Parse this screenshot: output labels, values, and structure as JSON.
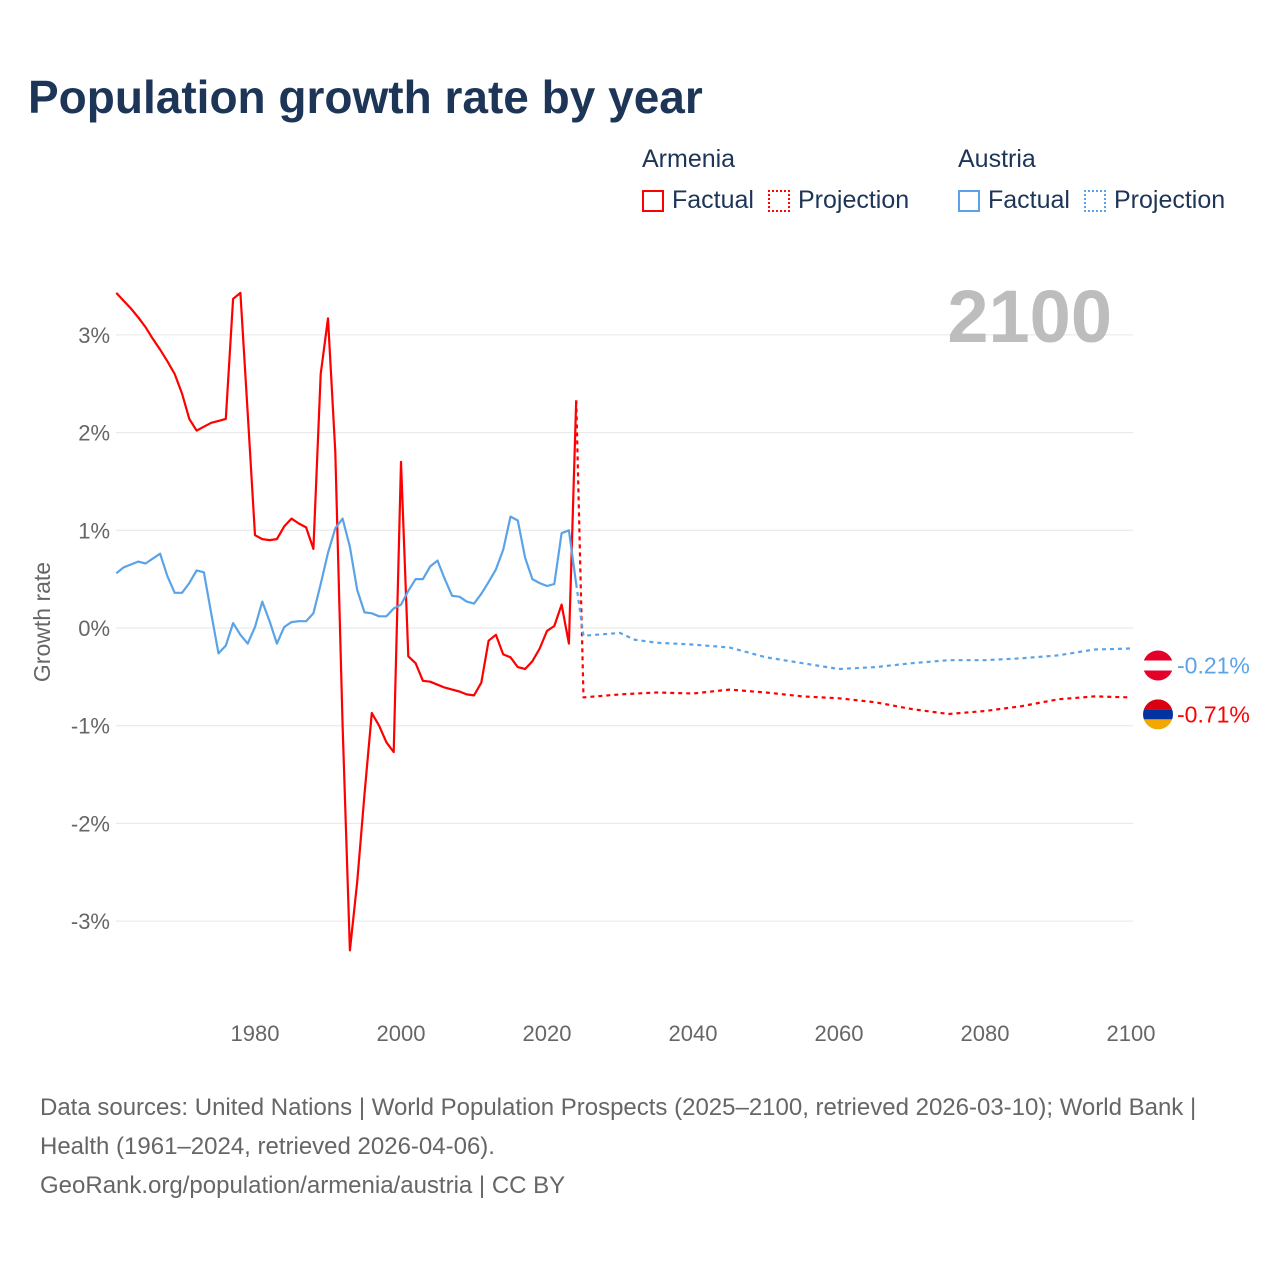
{
  "title": "Population growth rate by year",
  "legend": {
    "groups": [
      {
        "name": "Armenia",
        "factual": "Factual",
        "projection": "Projection",
        "color": "#ff0000"
      },
      {
        "name": "Austria",
        "factual": "Factual",
        "projection": "Projection",
        "color": "#5ba3e8"
      }
    ]
  },
  "year_overlay": "2100",
  "footer": {
    "sources": "Data sources: United Nations | World Population Prospects (2025–2100, retrieved 2026-03-10); World Bank | Health (1961–2024, retrieved 2026-04-06).",
    "credit": "GeoRank.org/population/armenia/austria | CC BY"
  },
  "chart_data": {
    "type": "line",
    "title": "Population growth rate by year",
    "xlabel": "",
    "ylabel": "Growth rate",
    "xlim": [
      1961,
      2100
    ],
    "ylim": [
      -3.9,
      3.6
    ],
    "x_ticks": [
      1980,
      2000,
      2020,
      2040,
      2060,
      2080,
      2100
    ],
    "x_tick_labels": [
      "1980",
      "2000",
      "2020",
      "2040",
      "2060",
      "2080",
      "2100"
    ],
    "y_ticks": [
      3,
      2,
      1,
      0,
      -1,
      -2,
      -3
    ],
    "y_tick_labels": [
      "3%",
      "2%",
      "1%",
      "0%",
      "-1%",
      "-2%",
      "-3%"
    ],
    "grid": true,
    "series": [
      {
        "name": "Armenia",
        "kind": "factual",
        "color": "#ff0000",
        "start_year": 1961,
        "values": [
          3.43,
          3.35,
          3.27,
          3.18,
          3.08,
          2.96,
          2.85,
          2.73,
          2.6,
          2.4,
          2.14,
          2.02,
          2.06,
          2.1,
          2.12,
          2.14,
          3.37,
          3.43,
          2.2,
          0.95,
          0.91,
          0.9,
          0.91,
          1.04,
          1.12,
          1.07,
          1.03,
          0.81,
          2.6,
          3.17,
          1.8,
          -1.0,
          -3.3,
          -2.6,
          -1.7,
          -0.87,
          -1.0,
          -1.17,
          -1.27,
          1.7,
          -0.29,
          -0.36,
          -0.54,
          -0.55,
          -0.58,
          -0.61,
          -0.63,
          -0.65,
          -0.68,
          -0.69,
          -0.56,
          -0.13,
          -0.07,
          -0.27,
          -0.3,
          -0.4,
          -0.42,
          -0.34,
          -0.21,
          -0.03,
          0.02,
          0.24,
          -0.16,
          2.33
        ]
      },
      {
        "name": "Armenia",
        "kind": "projection",
        "color": "#ff0000",
        "x": [
          2024,
          2025,
          2030,
          2035,
          2040,
          2045,
          2050,
          2055,
          2060,
          2065,
          2070,
          2075,
          2080,
          2085,
          2090,
          2095,
          2100
        ],
        "values": [
          2.33,
          -0.71,
          -0.68,
          -0.66,
          -0.67,
          -0.63,
          -0.66,
          -0.7,
          -0.72,
          -0.76,
          -0.83,
          -0.88,
          -0.85,
          -0.8,
          -0.73,
          -0.7,
          -0.71
        ]
      },
      {
        "name": "Austria",
        "kind": "factual",
        "color": "#5ba3e8",
        "start_year": 1961,
        "values": [
          0.56,
          0.62,
          0.65,
          0.68,
          0.66,
          0.71,
          0.76,
          0.53,
          0.36,
          0.36,
          0.46,
          0.59,
          0.57,
          0.15,
          -0.26,
          -0.18,
          0.05,
          -0.07,
          -0.16,
          0.01,
          0.27,
          0.07,
          -0.16,
          0.01,
          0.06,
          0.07,
          0.07,
          0.15,
          0.45,
          0.77,
          1.02,
          1.12,
          0.83,
          0.39,
          0.16,
          0.15,
          0.12,
          0.12,
          0.2,
          0.24,
          0.38,
          0.5,
          0.5,
          0.63,
          0.69,
          0.5,
          0.33,
          0.32,
          0.27,
          0.25,
          0.35,
          0.47,
          0.6,
          0.8,
          1.14,
          1.1,
          0.72,
          0.5,
          0.46,
          0.43,
          0.45,
          0.97,
          1.0,
          0.45
        ]
      },
      {
        "name": "Austria",
        "kind": "projection",
        "color": "#5ba3e8",
        "x": [
          2024,
          2025,
          2030,
          2032,
          2035,
          2040,
          2045,
          2050,
          2055,
          2060,
          2065,
          2070,
          2075,
          2080,
          2085,
          2090,
          2095,
          2100
        ],
        "values": [
          0.45,
          -0.08,
          -0.05,
          -0.12,
          -0.15,
          -0.17,
          -0.2,
          -0.3,
          -0.36,
          -0.42,
          -0.4,
          -0.36,
          -0.33,
          -0.33,
          -0.31,
          -0.28,
          -0.22,
          -0.21
        ]
      }
    ],
    "end_labels": [
      {
        "name": "Austria",
        "text": "-0.21%",
        "value": -0.21,
        "color": "#5ba3e8"
      },
      {
        "name": "Armenia",
        "text": "-0.71%",
        "value": -0.71,
        "color": "#ff0000"
      }
    ]
  }
}
